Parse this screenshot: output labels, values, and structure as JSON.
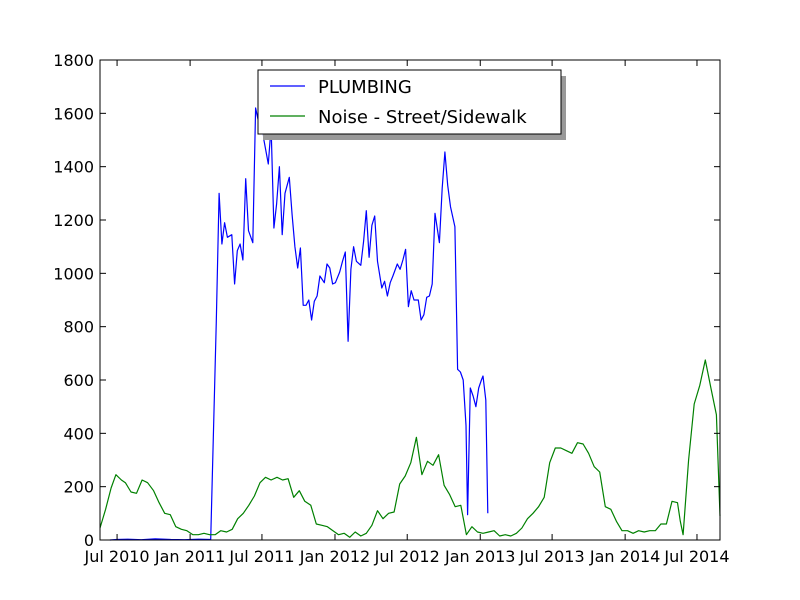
{
  "chart_data": {
    "type": "line",
    "title": "",
    "xlabel": "",
    "ylabel": "",
    "xlim": [
      "2010-05-19",
      "2014-08-28"
    ],
    "ylim": [
      0,
      1800
    ],
    "grid": false,
    "legend_position": "top-center",
    "y_ticks": [
      0,
      200,
      400,
      600,
      800,
      1000,
      1200,
      1400,
      1600,
      1800
    ],
    "y_tick_labels": [
      "0",
      "200",
      "400",
      "600",
      "800",
      "1000",
      "1200",
      "1400",
      "1600",
      "1800"
    ],
    "x_ticks": [
      "2010-07-01",
      "2011-01-01",
      "2011-07-01",
      "2012-01-01",
      "2012-07-01",
      "2013-01-01",
      "2013-07-01",
      "2014-01-01",
      "2014-07-01"
    ],
    "x_tick_labels": [
      "Jul 2010",
      "Jan 2011",
      "Jul 2011",
      "Jan 2012",
      "Jul 2012",
      "Jan 2013",
      "Jul 2013",
      "Jan 2014",
      "Jul 2014"
    ],
    "series": [
      {
        "name": "PLUMBING",
        "color": "#0000ff",
        "points": [
          [
            "2010-06-13",
            0
          ],
          [
            "2010-07-01",
            2
          ],
          [
            "2010-07-28",
            3
          ],
          [
            "2010-08-31",
            1
          ],
          [
            "2010-10-05",
            4
          ],
          [
            "2010-11-13",
            2
          ],
          [
            "2010-12-18",
            1
          ],
          [
            "2011-01-22",
            3
          ],
          [
            "2011-02-22",
            2
          ],
          [
            "2011-03-08",
            820
          ],
          [
            "2011-03-15",
            1300
          ],
          [
            "2011-03-22",
            1110
          ],
          [
            "2011-03-29",
            1190
          ],
          [
            "2011-04-05",
            1135
          ],
          [
            "2011-04-16",
            1145
          ],
          [
            "2011-04-23",
            960
          ],
          [
            "2011-04-30",
            1085
          ],
          [
            "2011-05-07",
            1110
          ],
          [
            "2011-05-14",
            1050
          ],
          [
            "2011-05-21",
            1355
          ],
          [
            "2011-05-28",
            1160
          ],
          [
            "2011-06-08",
            1115
          ],
          [
            "2011-06-15",
            1620
          ],
          [
            "2011-06-22",
            1570
          ],
          [
            "2011-06-29",
            1610
          ],
          [
            "2011-07-06",
            1500
          ],
          [
            "2011-07-17",
            1410
          ],
          [
            "2011-07-24",
            1550
          ],
          [
            "2011-07-31",
            1170
          ],
          [
            "2011-08-07",
            1260
          ],
          [
            "2011-08-14",
            1400
          ],
          [
            "2011-08-21",
            1145
          ],
          [
            "2011-08-28",
            1300
          ],
          [
            "2011-09-08",
            1360
          ],
          [
            "2011-09-15",
            1220
          ],
          [
            "2011-09-22",
            1100
          ],
          [
            "2011-09-29",
            1020
          ],
          [
            "2011-10-06",
            1095
          ],
          [
            "2011-10-13",
            880
          ],
          [
            "2011-10-20",
            880
          ],
          [
            "2011-10-27",
            900
          ],
          [
            "2011-11-03",
            825
          ],
          [
            "2011-11-10",
            895
          ],
          [
            "2011-11-17",
            915
          ],
          [
            "2011-11-24",
            990
          ],
          [
            "2011-12-05",
            965
          ],
          [
            "2011-12-12",
            1035
          ],
          [
            "2011-12-19",
            1020
          ],
          [
            "2011-12-26",
            960
          ],
          [
            "2012-01-02",
            965
          ],
          [
            "2012-01-13",
            1005
          ],
          [
            "2012-01-20",
            1045
          ],
          [
            "2012-01-27",
            1080
          ],
          [
            "2012-02-03",
            745
          ],
          [
            "2012-02-10",
            1015
          ],
          [
            "2012-02-17",
            1100
          ],
          [
            "2012-02-24",
            1045
          ],
          [
            "2012-03-06",
            1030
          ],
          [
            "2012-03-13",
            1120
          ],
          [
            "2012-03-20",
            1235
          ],
          [
            "2012-03-27",
            1060
          ],
          [
            "2012-04-03",
            1180
          ],
          [
            "2012-04-10",
            1215
          ],
          [
            "2012-04-17",
            1045
          ],
          [
            "2012-04-28",
            945
          ],
          [
            "2012-05-05",
            970
          ],
          [
            "2012-05-12",
            915
          ],
          [
            "2012-05-19",
            965
          ],
          [
            "2012-05-26",
            990
          ],
          [
            "2012-06-06",
            1035
          ],
          [
            "2012-06-13",
            1015
          ],
          [
            "2012-06-20",
            1050
          ],
          [
            "2012-06-27",
            1090
          ],
          [
            "2012-07-04",
            875
          ],
          [
            "2012-07-11",
            935
          ],
          [
            "2012-07-18",
            900
          ],
          [
            "2012-07-29",
            900
          ],
          [
            "2012-08-05",
            825
          ],
          [
            "2012-08-12",
            845
          ],
          [
            "2012-08-19",
            910
          ],
          [
            "2012-08-26",
            915
          ],
          [
            "2012-09-02",
            960
          ],
          [
            "2012-09-09",
            1225
          ],
          [
            "2012-09-20",
            1115
          ],
          [
            "2012-09-27",
            1320
          ],
          [
            "2012-10-04",
            1455
          ],
          [
            "2012-10-11",
            1330
          ],
          [
            "2012-10-18",
            1250
          ],
          [
            "2012-10-29",
            1175
          ],
          [
            "2012-11-05",
            640
          ],
          [
            "2012-11-12",
            630
          ],
          [
            "2012-11-19",
            600
          ],
          [
            "2012-11-26",
            430
          ],
          [
            "2012-11-30",
            95
          ],
          [
            "2012-12-07",
            570
          ],
          [
            "2012-12-14",
            540
          ],
          [
            "2012-12-21",
            500
          ],
          [
            "2012-12-28",
            570
          ],
          [
            "2013-01-04",
            600
          ],
          [
            "2013-01-08",
            615
          ],
          [
            "2013-01-15",
            525
          ],
          [
            "2013-01-20",
            100
          ]
        ]
      },
      {
        "name": "Noise - Street/Sidewalk",
        "color": "#008000",
        "points": [
          [
            "2010-05-19",
            45
          ],
          [
            "2010-06-02",
            115
          ],
          [
            "2010-06-16",
            195
          ],
          [
            "2010-06-28",
            245
          ],
          [
            "2010-07-12",
            225
          ],
          [
            "2010-07-22",
            215
          ],
          [
            "2010-08-05",
            180
          ],
          [
            "2010-08-19",
            175
          ],
          [
            "2010-09-02",
            225
          ],
          [
            "2010-09-16",
            215
          ],
          [
            "2010-10-01",
            185
          ],
          [
            "2010-10-15",
            140
          ],
          [
            "2010-10-29",
            100
          ],
          [
            "2010-11-12",
            95
          ],
          [
            "2010-11-26",
            50
          ],
          [
            "2010-12-10",
            40
          ],
          [
            "2010-12-24",
            35
          ],
          [
            "2011-01-08",
            20
          ],
          [
            "2011-01-22",
            20
          ],
          [
            "2011-02-05",
            25
          ],
          [
            "2011-02-19",
            20
          ],
          [
            "2011-03-05",
            20
          ],
          [
            "2011-03-19",
            35
          ],
          [
            "2011-04-03",
            30
          ],
          [
            "2011-04-17",
            40
          ],
          [
            "2011-05-01",
            80
          ],
          [
            "2011-05-15",
            100
          ],
          [
            "2011-05-29",
            130
          ],
          [
            "2011-06-12",
            165
          ],
          [
            "2011-06-26",
            215
          ],
          [
            "2011-07-10",
            235
          ],
          [
            "2011-07-24",
            225
          ],
          [
            "2011-08-08",
            235
          ],
          [
            "2011-08-22",
            225
          ],
          [
            "2011-09-05",
            230
          ],
          [
            "2011-09-19",
            160
          ],
          [
            "2011-10-03",
            185
          ],
          [
            "2011-10-17",
            145
          ],
          [
            "2011-11-01",
            130
          ],
          [
            "2011-11-15",
            60
          ],
          [
            "2011-11-29",
            55
          ],
          [
            "2011-12-13",
            50
          ],
          [
            "2011-12-27",
            35
          ],
          [
            "2012-01-10",
            20
          ],
          [
            "2012-01-24",
            25
          ],
          [
            "2012-02-07",
            10
          ],
          [
            "2012-02-21",
            30
          ],
          [
            "2012-03-06",
            15
          ],
          [
            "2012-03-20",
            25
          ],
          [
            "2012-04-03",
            55
          ],
          [
            "2012-04-17",
            110
          ],
          [
            "2012-05-01",
            80
          ],
          [
            "2012-05-15",
            100
          ],
          [
            "2012-05-29",
            105
          ],
          [
            "2012-06-12",
            210
          ],
          [
            "2012-06-26",
            240
          ],
          [
            "2012-07-10",
            290
          ],
          [
            "2012-07-24",
            385
          ],
          [
            "2012-08-07",
            245
          ],
          [
            "2012-08-21",
            295
          ],
          [
            "2012-09-04",
            280
          ],
          [
            "2012-09-18",
            320
          ],
          [
            "2012-10-02",
            205
          ],
          [
            "2012-10-16",
            170
          ],
          [
            "2012-10-30",
            125
          ],
          [
            "2012-11-13",
            130
          ],
          [
            "2012-11-27",
            20
          ],
          [
            "2012-12-11",
            50
          ],
          [
            "2012-12-25",
            30
          ],
          [
            "2013-01-08",
            25
          ],
          [
            "2013-01-22",
            30
          ],
          [
            "2013-02-05",
            35
          ],
          [
            "2013-02-19",
            15
          ],
          [
            "2013-03-05",
            20
          ],
          [
            "2013-03-19",
            15
          ],
          [
            "2013-04-02",
            25
          ],
          [
            "2013-04-16",
            45
          ],
          [
            "2013-04-30",
            80
          ],
          [
            "2013-05-14",
            100
          ],
          [
            "2013-05-28",
            125
          ],
          [
            "2013-06-11",
            160
          ],
          [
            "2013-06-25",
            290
          ],
          [
            "2013-07-09",
            345
          ],
          [
            "2013-07-23",
            345
          ],
          [
            "2013-08-06",
            335
          ],
          [
            "2013-08-20",
            325
          ],
          [
            "2013-09-03",
            365
          ],
          [
            "2013-09-17",
            360
          ],
          [
            "2013-10-01",
            325
          ],
          [
            "2013-10-15",
            275
          ],
          [
            "2013-10-29",
            255
          ],
          [
            "2013-11-12",
            125
          ],
          [
            "2013-11-26",
            115
          ],
          [
            "2013-12-10",
            70
          ],
          [
            "2013-12-24",
            35
          ],
          [
            "2014-01-07",
            35
          ],
          [
            "2014-01-21",
            25
          ],
          [
            "2014-02-04",
            35
          ],
          [
            "2014-02-18",
            30
          ],
          [
            "2014-03-04",
            35
          ],
          [
            "2014-03-18",
            35
          ],
          [
            "2014-04-01",
            60
          ],
          [
            "2014-04-15",
            60
          ],
          [
            "2014-04-29",
            145
          ],
          [
            "2014-05-13",
            140
          ],
          [
            "2014-05-20",
            70
          ],
          [
            "2014-05-27",
            20
          ],
          [
            "2014-06-10",
            300
          ],
          [
            "2014-06-24",
            510
          ],
          [
            "2014-07-08",
            580
          ],
          [
            "2014-07-22",
            675
          ],
          [
            "2014-08-05",
            570
          ],
          [
            "2014-08-19",
            470
          ],
          [
            "2014-08-28",
            90
          ]
        ]
      }
    ]
  }
}
